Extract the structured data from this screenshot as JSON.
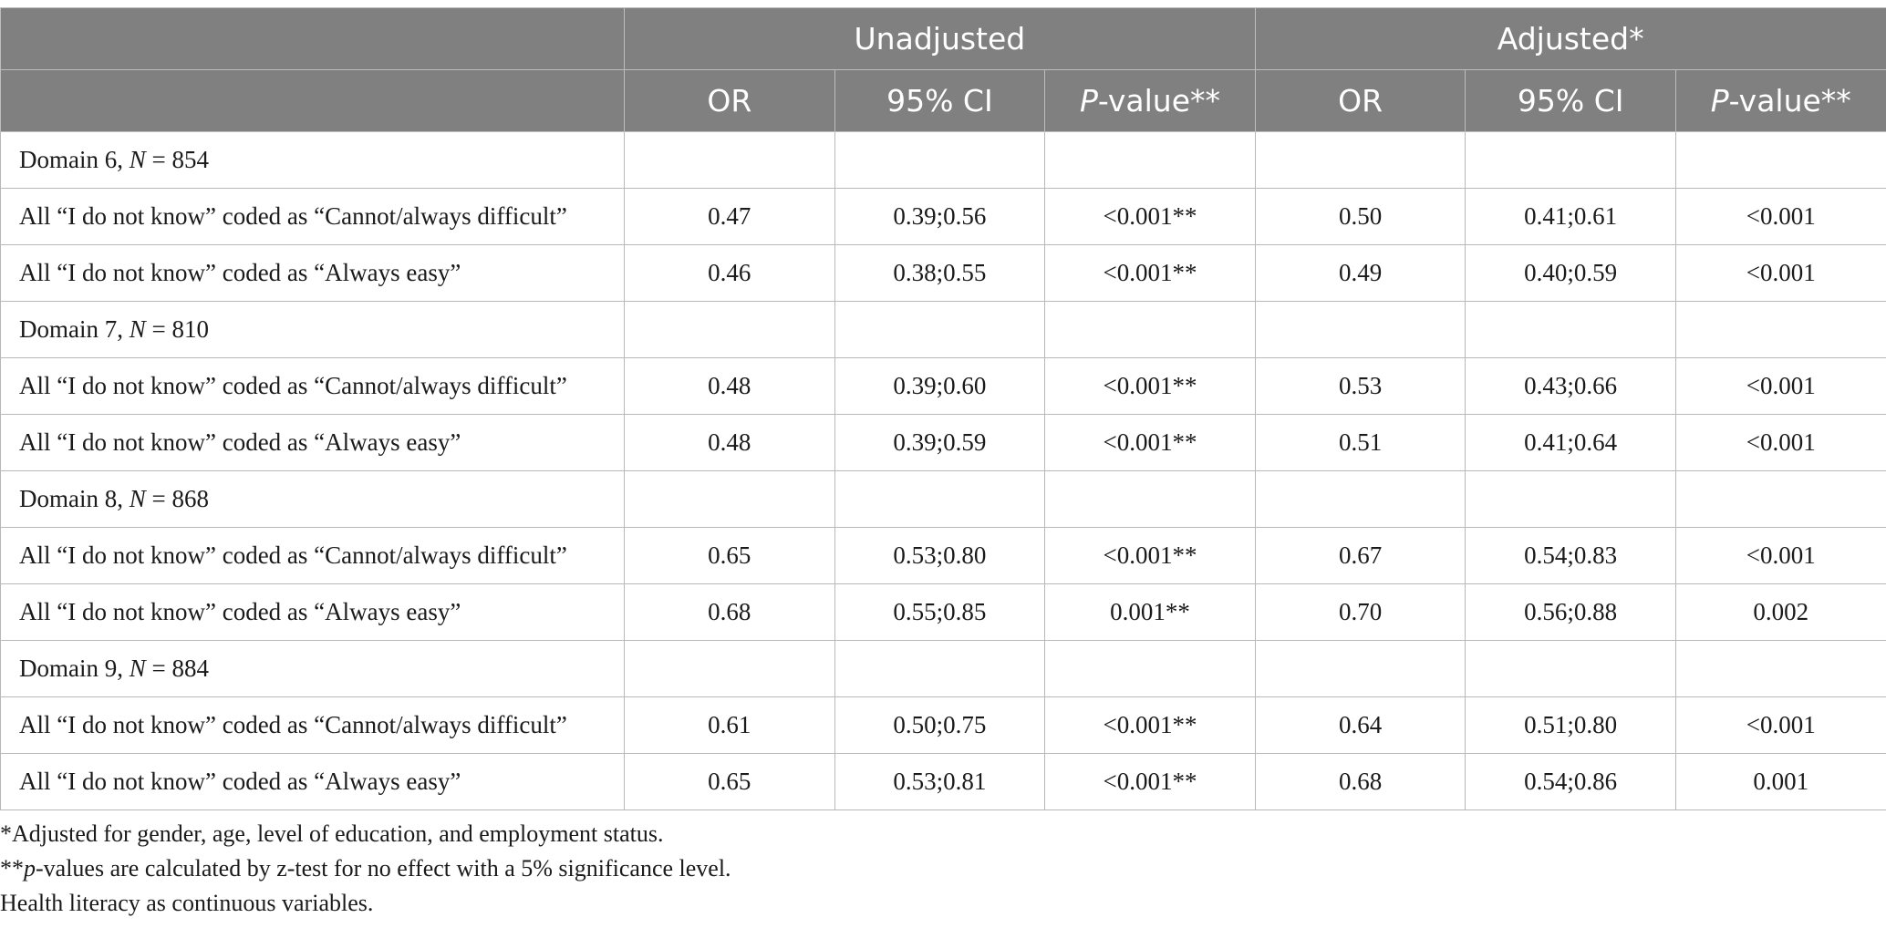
{
  "header": {
    "groups": [
      "Unadjusted",
      "Adjusted*"
    ],
    "subcolumns": [
      {
        "prefix": "",
        "italic": "",
        "text": "OR"
      },
      {
        "prefix": "",
        "italic": "",
        "text": "95% CI"
      },
      {
        "prefix": "",
        "italic": "P",
        "text": "-value**"
      },
      {
        "prefix": "",
        "italic": "",
        "text": "OR"
      },
      {
        "prefix": "",
        "italic": "",
        "text": "95% CI"
      },
      {
        "prefix": "",
        "italic": "P",
        "text": "-value**"
      }
    ]
  },
  "rows": [
    {
      "type": "domain",
      "pre": "Domain 6, ",
      "n_label": "N",
      "post": " = 854"
    },
    {
      "type": "data",
      "label": "All “I do not know” coded as “Cannot/always difficult”",
      "cells": [
        "0.47",
        "0.39;0.56",
        "<0.001**",
        "0.50",
        "0.41;0.61",
        "<0.001"
      ]
    },
    {
      "type": "data",
      "label": "All “I do not know” coded as “Always easy”",
      "cells": [
        "0.46",
        "0.38;0.55",
        "<0.001**",
        "0.49",
        "0.40;0.59",
        "<0.001"
      ]
    },
    {
      "type": "domain",
      "pre": "Domain 7, ",
      "n_label": "N",
      "post": " = 810"
    },
    {
      "type": "data",
      "label": "All “I do not know” coded as “Cannot/always difficult”",
      "cells": [
        "0.48",
        "0.39;0.60",
        "<0.001**",
        "0.53",
        "0.43;0.66",
        "<0.001"
      ]
    },
    {
      "type": "data",
      "label": "All “I do not know” coded as “Always easy”",
      "cells": [
        "0.48",
        "0.39;0.59",
        "<0.001**",
        "0.51",
        "0.41;0.64",
        "<0.001"
      ]
    },
    {
      "type": "domain",
      "pre": "Domain 8, ",
      "n_label": "N",
      "post": " = 868"
    },
    {
      "type": "data",
      "label": "All “I do not know” coded as “Cannot/always difficult”",
      "cells": [
        "0.65",
        "0.53;0.80",
        "<0.001**",
        "0.67",
        "0.54;0.83",
        "<0.001"
      ]
    },
    {
      "type": "data",
      "label": "All “I do not know” coded as “Always easy”",
      "cells": [
        "0.68",
        "0.55;0.85",
        "0.001**",
        "0.70",
        "0.56;0.88",
        "0.002"
      ]
    },
    {
      "type": "domain",
      "pre": "Domain 9, ",
      "n_label": "N",
      "post": " = 884"
    },
    {
      "type": "data",
      "label": "All “I do not know” coded as “Cannot/always difficult”",
      "cells": [
        "0.61",
        "0.50;0.75",
        "<0.001**",
        "0.64",
        "0.51;0.80",
        "<0.001"
      ]
    },
    {
      "type": "data",
      "label": "All “I do not know” coded as “Always easy”",
      "cells": [
        "0.65",
        "0.53;0.81",
        "<0.001**",
        "0.68",
        "0.54;0.86",
        "0.001"
      ]
    }
  ],
  "footnotes": {
    "note1": "*Adjusted for gender, age, level of education, and employment status.",
    "note2_prefix": "**",
    "note2_italic": "p",
    "note2_text": "-values are calculated by z-test for no effect with a 5% significance level.",
    "note3": "Health literacy as continuous variables."
  }
}
